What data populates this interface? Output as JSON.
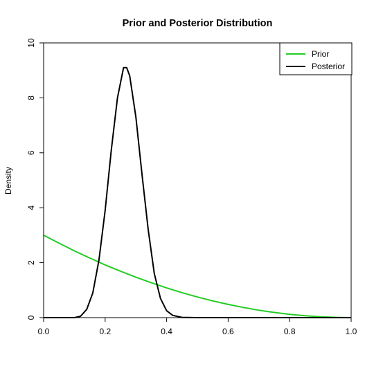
{
  "chart_data": {
    "type": "line",
    "title": "Prior and Posterior Distribution",
    "xlabel": "",
    "ylabel": "Density",
    "xlim": [
      0,
      1
    ],
    "ylim": [
      0,
      10
    ],
    "xticks": [
      "0.0",
      "0.2",
      "0.4",
      "0.6",
      "0.8",
      "1.0"
    ],
    "yticks": [
      "0",
      "2",
      "4",
      "6",
      "8",
      "10"
    ],
    "grid": false,
    "legend_position": "top-right",
    "series": [
      {
        "name": "Prior",
        "color": "#22cc22",
        "x": [
          0,
          0.05,
          0.1,
          0.15,
          0.2,
          0.25,
          0.3,
          0.35,
          0.4,
          0.45,
          0.5,
          0.55,
          0.6,
          0.65,
          0.7,
          0.75,
          0.8,
          0.85,
          0.9,
          0.95,
          1.0
        ],
        "y": [
          3.0,
          2.71,
          2.43,
          2.17,
          1.92,
          1.69,
          1.47,
          1.27,
          1.08,
          0.91,
          0.75,
          0.61,
          0.48,
          0.37,
          0.27,
          0.19,
          0.12,
          0.07,
          0.03,
          0.01,
          0.0
        ]
      },
      {
        "name": "Posterior",
        "color": "#000000",
        "x": [
          0,
          0.1,
          0.12,
          0.14,
          0.16,
          0.18,
          0.2,
          0.22,
          0.24,
          0.26,
          0.27,
          0.28,
          0.3,
          0.32,
          0.34,
          0.36,
          0.38,
          0.4,
          0.42,
          0.45,
          0.5,
          1.0
        ],
        "y": [
          0,
          0.0,
          0.05,
          0.3,
          0.9,
          2.1,
          3.9,
          6.1,
          8.0,
          9.1,
          9.1,
          8.8,
          7.3,
          5.2,
          3.2,
          1.6,
          0.7,
          0.25,
          0.08,
          0.01,
          0,
          0
        ]
      }
    ]
  }
}
